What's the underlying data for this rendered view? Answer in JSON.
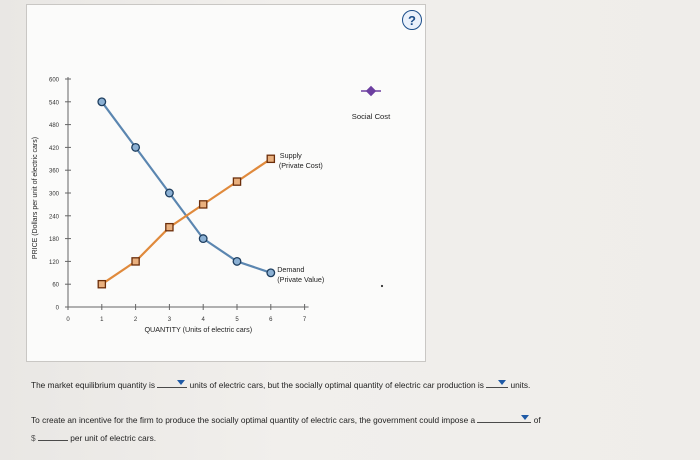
{
  "help": {
    "label": "?"
  },
  "chart_data": {
    "type": "line",
    "xlabel": "QUANTITY (Units of electric cars)",
    "ylabel": "PRICE (Dollars per unit of electric cars)",
    "xlim": [
      0,
      7
    ],
    "ylim": [
      0,
      600
    ],
    "x_ticks": [
      "0",
      "1",
      "2",
      "3",
      "4",
      "5",
      "6",
      "7"
    ],
    "y_ticks": [
      "0",
      "60",
      "120",
      "180",
      "240",
      "300",
      "360",
      "420",
      "480",
      "540",
      "600"
    ],
    "series": [
      {
        "name": "Demand (Private Value)",
        "label_line1": "Demand",
        "label_line2": "(Private Value)",
        "marker": "circle",
        "color": "#5b86b0",
        "fill": "#8bb0d3",
        "x": [
          1,
          2,
          3,
          4,
          5,
          6
        ],
        "y": [
          540,
          420,
          300,
          180,
          120,
          90
        ]
      },
      {
        "name": "Supply (Private Cost)",
        "label_line1": "Supply",
        "label_line2": "(Private Cost)",
        "marker": "square",
        "color": "#e08a3c",
        "fill": "#e9b07e",
        "x": [
          1,
          2,
          3,
          4,
          5,
          6
        ],
        "y": [
          60,
          120,
          210,
          270,
          330,
          390
        ]
      }
    ],
    "legend": {
      "name": "Social Cost",
      "marker": "diamond",
      "color": "#6c3fa0"
    }
  },
  "questions": {
    "q1_part1": "The market equilibrium quantity is",
    "q1_part2": "units of electric cars, but the socially optimal quantity of electric car production is",
    "q1_part3": "units.",
    "q2_part1": "To create an incentive for the firm to produce the socially optimal quantity of electric cars, the government could impose a",
    "q2_part2": "of",
    "q3_currency": "$",
    "q3_part2": "per unit of electric cars."
  }
}
